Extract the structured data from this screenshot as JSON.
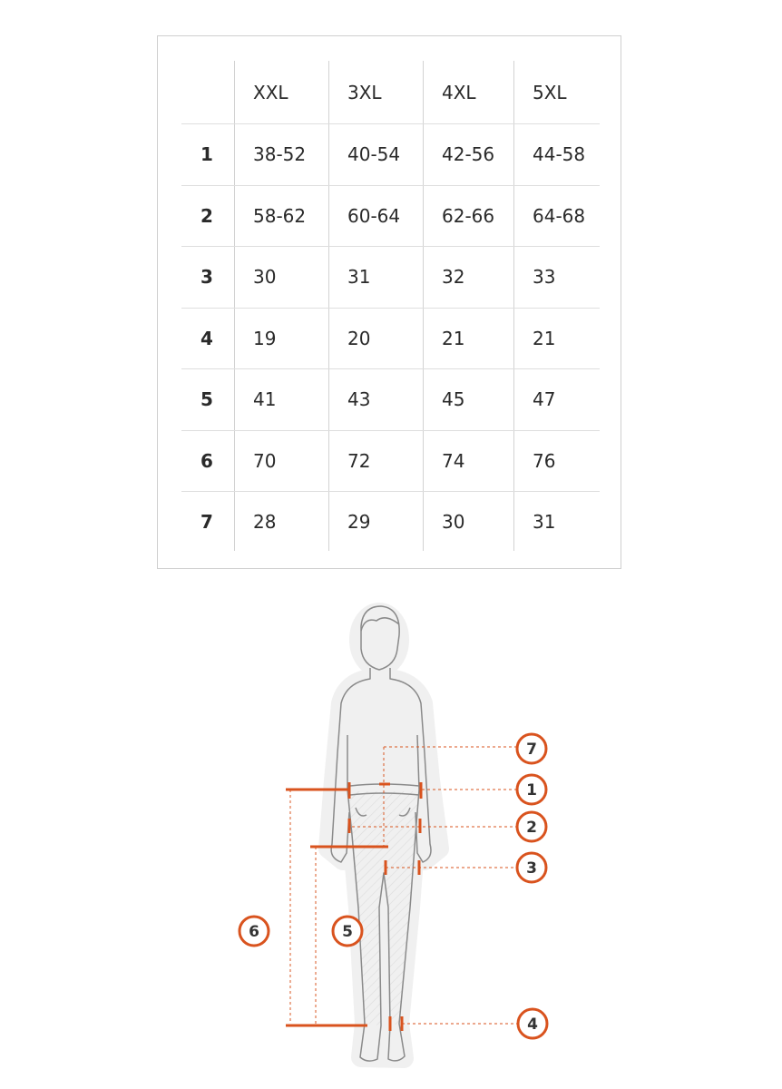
{
  "size_table": {
    "columns": [
      "XXL",
      "3XL",
      "4XL",
      "5XL"
    ],
    "rows": [
      {
        "label": "1",
        "values": [
          "38-52",
          "40-54",
          "42-56",
          "44-58"
        ]
      },
      {
        "label": "2",
        "values": [
          "58-62",
          "60-64",
          "62-66",
          "64-68"
        ]
      },
      {
        "label": "3",
        "values": [
          "30",
          "31",
          "32",
          "33"
        ]
      },
      {
        "label": "4",
        "values": [
          "19",
          "20",
          "21",
          "21"
        ]
      },
      {
        "label": "5",
        "values": [
          "41",
          "43",
          "45",
          "47"
        ]
      },
      {
        "label": "6",
        "values": [
          "70",
          "72",
          "74",
          "76"
        ]
      },
      {
        "label": "7",
        "values": [
          "28",
          "29",
          "30",
          "31"
        ]
      }
    ]
  },
  "diagram": {
    "accent_color": "#d9531e",
    "markers": [
      "7",
      "1",
      "2",
      "3",
      "4",
      "6",
      "5"
    ]
  }
}
